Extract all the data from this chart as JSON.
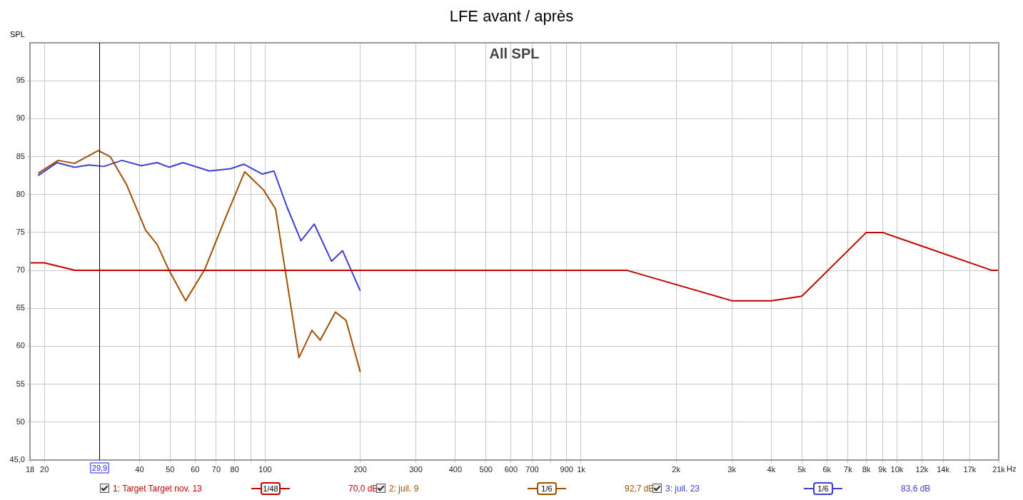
{
  "chart_data": {
    "type": "line",
    "title": "LFE avant / après",
    "ylabel": "SPL",
    "xlabel": "Hz",
    "annotations": [
      "All SPL",
      "1/48",
      "70,0 dB",
      "1/6",
      "92,7 dB",
      "1/6",
      "83,6 dB"
    ],
    "xlim": [
      18,
      21000
    ],
    "ylim": [
      45,
      100
    ],
    "xticks": [
      18,
      20,
      40,
      50,
      60,
      70,
      80,
      {
        "value": 90,
        "label": null
      },
      100,
      200,
      300,
      400,
      500,
      600,
      700,
      {
        "value": 800,
        "label": null
      },
      900,
      {
        "value": 1000,
        "label": "1k"
      },
      {
        "value": 2000,
        "label": "2k"
      },
      {
        "value": 3000,
        "label": "3k"
      },
      {
        "value": 4000,
        "label": "4k"
      },
      {
        "value": 5000,
        "label": "5k"
      },
      {
        "value": 6000,
        "label": "6k"
      },
      {
        "value": 7000,
        "label": "7k"
      },
      {
        "value": 8000,
        "label": "8k"
      },
      {
        "value": 9000,
        "label": "9k"
      },
      {
        "value": 10000,
        "label": "10k"
      },
      {
        "value": 12000,
        "label": "12k"
      },
      {
        "value": 14000,
        "label": "14k"
      },
      {
        "value": 17000,
        "label": "17k"
      },
      {
        "value": 21000,
        "label": "21k"
      }
    ],
    "yticks": [
      {
        "value": 45,
        "label": "45,0"
      },
      50,
      55,
      60,
      65,
      70,
      75,
      80,
      85,
      90,
      95
    ],
    "log": "x",
    "grid": true,
    "legend": "bottom",
    "marker": "none",
    "line_style": "solid",
    "ref_lines": [
      {
        "axis": "x",
        "value": 29.9,
        "label": "29,9",
        "color": "#000000"
      }
    ],
    "series": [
      {
        "name": "1: Target Target nov. 13",
        "color": "#c00000",
        "x": [
          18,
          20,
          25,
          1400,
          3000,
          4000,
          5000,
          8000,
          9000,
          20000,
          21000
        ],
        "values": [
          71,
          71,
          70,
          70,
          66,
          66,
          66.6,
          75,
          75,
          70,
          70
        ]
      },
      {
        "name": "2: juil. 9",
        "color": "#a05000",
        "x": [
          19.1,
          22.1,
          24.9,
          29.6,
          32.3,
          36.4,
          41.8,
          45.5,
          49.6,
          56,
          64.3,
          73.8,
          86.1,
          98.8,
          107.8,
          115.4,
          127.9,
          140.6,
          149.3,
          166.9,
          180.3,
          200
        ],
        "values": [
          82.8,
          84.5,
          84.1,
          85.8,
          85,
          81.3,
          75.3,
          73.4,
          70,
          66,
          70.1,
          76.3,
          83,
          80.6,
          78.1,
          70.3,
          58.5,
          62.1,
          60.8,
          64.5,
          63.4,
          56.6
        ]
      },
      {
        "name": "3: juil. 23",
        "color": "#4040d0",
        "x": [
          19.1,
          21.9,
          24.9,
          27.7,
          30.8,
          35.2,
          40.5,
          45.5,
          49.6,
          54.9,
          66.6,
          77.8,
          85.5,
          97.9,
          106.6,
          117.1,
          129.8,
          143,
          162.2,
          175.7,
          200
        ],
        "values": [
          82.5,
          84.2,
          83.6,
          83.9,
          83.7,
          84.5,
          83.8,
          84.2,
          83.6,
          84.2,
          83.1,
          83.4,
          84,
          82.7,
          83.1,
          78.4,
          73.9,
          76.1,
          71.2,
          72.6,
          67.3
        ]
      }
    ]
  }
}
